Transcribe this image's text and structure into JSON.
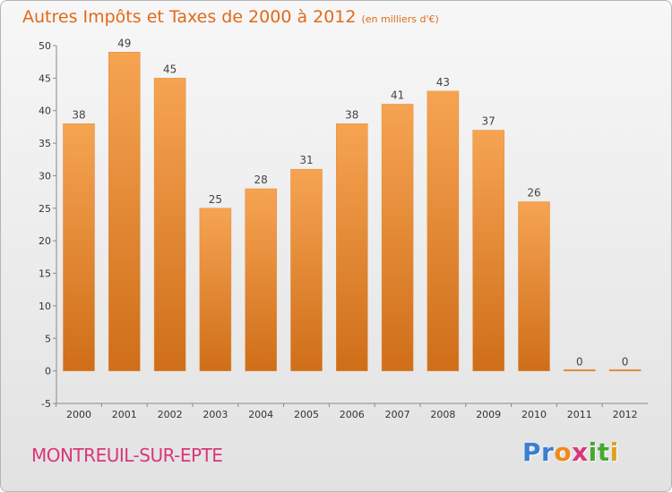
{
  "title": {
    "main": "Autres Impôts et Taxes de 2000 à 2012",
    "unit": "(en milliers d'€)"
  },
  "commune": "MONTREUIL-SUR-EPTE",
  "logo": {
    "text": "Proxiti",
    "letters": [
      "P",
      "r",
      "o",
      "x",
      "i",
      "t",
      "i"
    ],
    "colors": [
      "#3a7fd0",
      "#3a7fd0",
      "#f08a1a",
      "#d9367a",
      "#46a832",
      "#46a832",
      "#e0a020"
    ]
  },
  "colors": {
    "bar_top": "#f6a452",
    "bar_bottom": "#cf6e19",
    "title": "#e06a1a",
    "commune": "#d9367a"
  },
  "chart_data": {
    "type": "bar",
    "categories": [
      "2000",
      "2001",
      "2002",
      "2003",
      "2004",
      "2005",
      "2006",
      "2007",
      "2008",
      "2009",
      "2010",
      "2011",
      "2012"
    ],
    "values": [
      38,
      49,
      45,
      25,
      28,
      31,
      38,
      41,
      43,
      37,
      26,
      0,
      0
    ],
    "data_labels": [
      "38",
      "49",
      "45",
      "25",
      "28",
      "31",
      "38",
      "41",
      "43",
      "37",
      "26",
      "0",
      "0"
    ],
    "yticks": [
      -5,
      0,
      5,
      10,
      15,
      20,
      25,
      30,
      35,
      40,
      45,
      50
    ],
    "ylim": [
      -5,
      50
    ],
    "grid": false,
    "xlabel": "",
    "ylabel": ""
  }
}
